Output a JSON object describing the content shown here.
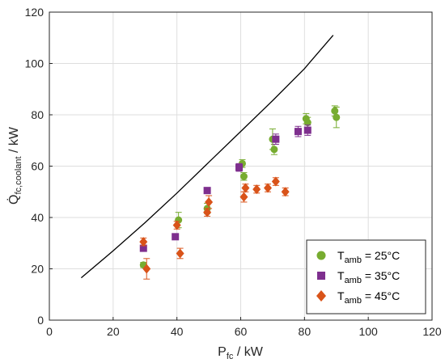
{
  "chart_data": {
    "type": "scatter",
    "x_axis": {
      "label_main": "P",
      "label_sub": "fc",
      "label_unit": " / kW",
      "range": [
        0,
        120
      ],
      "ticks": [
        0,
        20,
        40,
        60,
        80,
        100,
        120
      ]
    },
    "y_axis": {
      "label_main": "Q̇",
      "label_sub": "fc,coolant",
      "label_unit": " / kW",
      "range": [
        0,
        120
      ],
      "ticks": [
        0,
        20,
        40,
        60,
        80,
        100,
        120
      ]
    },
    "grid": true,
    "legend_position": "bottom-right",
    "reference_line": {
      "color": "#000000",
      "points": [
        [
          10,
          16.5
        ],
        [
          20,
          27
        ],
        [
          30,
          38
        ],
        [
          40,
          49.5
        ],
        [
          50,
          61.5
        ],
        [
          60,
          73.5
        ],
        [
          70,
          85.5
        ],
        [
          80,
          98
        ],
        [
          89,
          111
        ]
      ]
    },
    "series": [
      {
        "legend_main": "T",
        "legend_sub": "amb",
        "legend_value": " = 25°C",
        "marker": "circle",
        "color": "#77ac30",
        "points": [
          {
            "x": 29.5,
            "y": 21.5,
            "err": 1
          },
          {
            "x": 40.5,
            "y": 39,
            "err": 3
          },
          {
            "x": 49.5,
            "y": 43.5,
            "err": 2
          },
          {
            "x": 60.5,
            "y": 61,
            "err": 1.5
          },
          {
            "x": 61,
            "y": 56,
            "err": 1.5
          },
          {
            "x": 70,
            "y": 70.5,
            "err": 4
          },
          {
            "x": 70.5,
            "y": 66.5,
            "err": 2
          },
          {
            "x": 80.5,
            "y": 78.5,
            "err": 2
          },
          {
            "x": 81,
            "y": 77,
            "err": 2
          },
          {
            "x": 89.5,
            "y": 81.5,
            "err": 2
          },
          {
            "x": 90,
            "y": 79,
            "err": 4
          }
        ]
      },
      {
        "legend_main": "T",
        "legend_sub": "amb",
        "legend_value": " = 35°C",
        "marker": "square",
        "color": "#7e2f8e",
        "points": [
          {
            "x": 29.5,
            "y": 28,
            "err": 1
          },
          {
            "x": 39.5,
            "y": 32.5,
            "err": 1
          },
          {
            "x": 49.5,
            "y": 50.5,
            "err": 1
          },
          {
            "x": 59.5,
            "y": 59.5,
            "err": 1.5
          },
          {
            "x": 71,
            "y": 70.5,
            "err": 2
          },
          {
            "x": 78,
            "y": 73.5,
            "err": 2
          },
          {
            "x": 81,
            "y": 74,
            "err": 2
          }
        ]
      },
      {
        "legend_main": "T",
        "legend_sub": "amb",
        "legend_value": " = 45°C",
        "marker": "diamond",
        "color": "#d95319",
        "points": [
          {
            "x": 29.5,
            "y": 30.5,
            "err": 1.5
          },
          {
            "x": 30.5,
            "y": 20,
            "err": 4
          },
          {
            "x": 40,
            "y": 37,
            "err": 1.5
          },
          {
            "x": 41,
            "y": 26,
            "err": 2
          },
          {
            "x": 49.5,
            "y": 42,
            "err": 1.5
          },
          {
            "x": 50,
            "y": 46,
            "err": 2.5
          },
          {
            "x": 61,
            "y": 48,
            "err": 2
          },
          {
            "x": 61.5,
            "y": 51.5,
            "err": 1.5
          },
          {
            "x": 65,
            "y": 51,
            "err": 1.5
          },
          {
            "x": 68.5,
            "y": 51.5,
            "err": 1.5
          },
          {
            "x": 71,
            "y": 54,
            "err": 1.5
          },
          {
            "x": 74,
            "y": 50,
            "err": 1.5
          }
        ]
      }
    ]
  }
}
